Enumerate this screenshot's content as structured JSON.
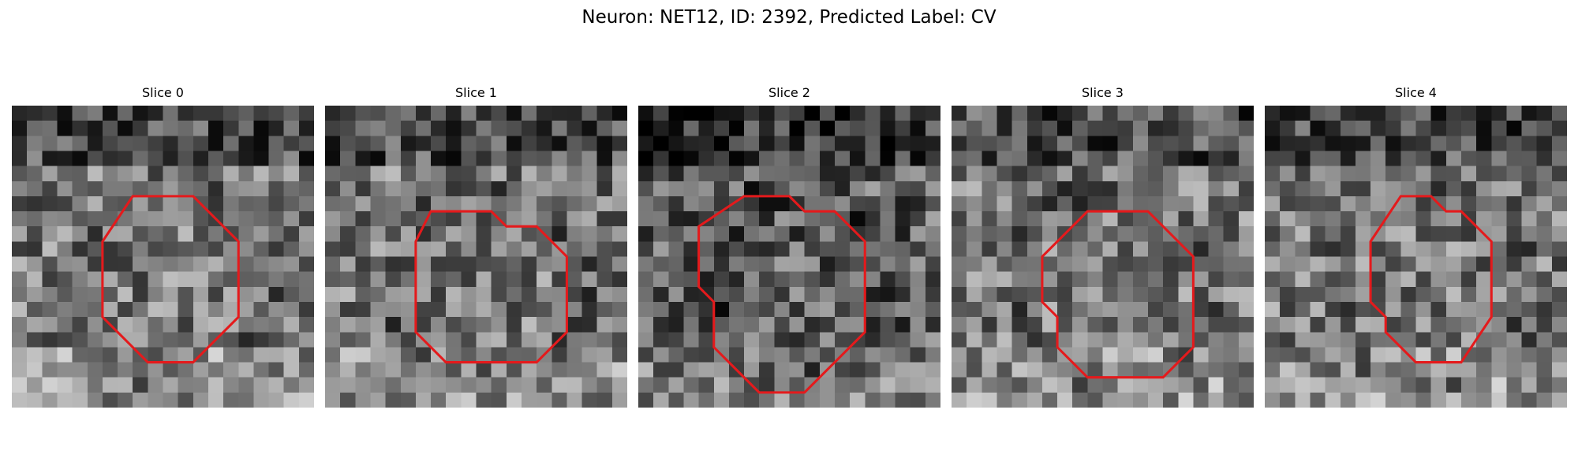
{
  "figure": {
    "title": "Neuron: NET12, ID: 2392, Predicted Label: CV",
    "outline_color": "#e41a1c",
    "colormap": "gray"
  },
  "slices": [
    {
      "title": "Slice 0",
      "seed": 11,
      "brightness": "mid",
      "roi_polygon": [
        [
          8,
          6
        ],
        [
          12,
          6
        ],
        [
          15,
          9
        ],
        [
          15,
          14
        ],
        [
          12,
          17
        ],
        [
          9,
          17
        ],
        [
          6,
          14
        ],
        [
          6,
          9
        ]
      ]
    },
    {
      "title": "Slice 1",
      "seed": 23,
      "brightness": "mid",
      "roi_polygon": [
        [
          7,
          7
        ],
        [
          11,
          7
        ],
        [
          12,
          8
        ],
        [
          14,
          8
        ],
        [
          16,
          10
        ],
        [
          16,
          15
        ],
        [
          14,
          17
        ],
        [
          8,
          17
        ],
        [
          6,
          15
        ],
        [
          6,
          9
        ]
      ]
    },
    {
      "title": "Slice 2",
      "seed": 37,
      "brightness": "dark",
      "roi_polygon": [
        [
          7,
          6
        ],
        [
          10,
          6
        ],
        [
          11,
          7
        ],
        [
          13,
          7
        ],
        [
          15,
          9
        ],
        [
          15,
          15
        ],
        [
          11,
          19
        ],
        [
          8,
          19
        ],
        [
          5,
          16
        ],
        [
          5,
          13
        ],
        [
          4,
          12
        ],
        [
          4,
          8
        ]
      ]
    },
    {
      "title": "Slice 3",
      "seed": 41,
      "brightness": "mid",
      "roi_polygon": [
        [
          9,
          7
        ],
        [
          13,
          7
        ],
        [
          16,
          10
        ],
        [
          16,
          16
        ],
        [
          14,
          18
        ],
        [
          9,
          18
        ],
        [
          7,
          16
        ],
        [
          7,
          14
        ],
        [
          6,
          13
        ],
        [
          6,
          10
        ]
      ]
    },
    {
      "title": "Slice 4",
      "seed": 53,
      "brightness": "mid",
      "roi_polygon": [
        [
          9,
          6
        ],
        [
          11,
          6
        ],
        [
          12,
          7
        ],
        [
          13,
          7
        ],
        [
          15,
          9
        ],
        [
          15,
          14
        ],
        [
          13,
          17
        ],
        [
          10,
          17
        ],
        [
          8,
          15
        ],
        [
          8,
          14
        ],
        [
          7,
          13
        ],
        [
          7,
          9
        ]
      ]
    }
  ]
}
